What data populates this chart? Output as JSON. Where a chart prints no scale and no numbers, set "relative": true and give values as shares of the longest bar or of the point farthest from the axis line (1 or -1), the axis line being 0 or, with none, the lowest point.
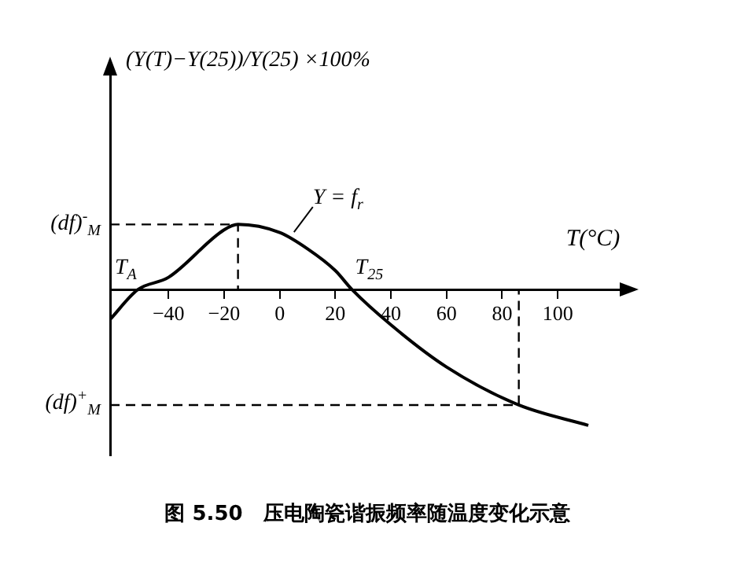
{
  "chart_data": {
    "type": "line",
    "relative": true,
    "title": "图 5.50　压电陶瓷谐振频率随温度变化示意",
    "xlabel": "T(°C)",
    "xlim": [
      -61,
      124
    ],
    "xticks": [
      -40,
      -20,
      0,
      20,
      40,
      60,
      80,
      100
    ],
    "marker": "none",
    "legend": false,
    "grid": false,
    "series": [
      {
        "color": "#000000",
        "x": [
          -61,
          -51,
          -40,
          -20,
          -15,
          0,
          10,
          20,
          26,
          40,
          60,
          86,
          111
        ],
        "values": [
          -0.22,
          0,
          0.09,
          0.44,
          0.48,
          0.42,
          0.3,
          0.14,
          0,
          -0.26,
          -0.57,
          -0.85,
          -1
        ]
      },
      {
        "color": "#000000",
        "line_style": "dashed",
        "x": [
          -61,
          -15,
          -15
        ],
        "values": [
          0.48,
          0.48,
          0
        ]
      },
      {
        "color": "#000000",
        "line_style": "dashed",
        "x": [
          -61,
          86,
          86
        ],
        "values": [
          -0.85,
          -0.85,
          0
        ]
      }
    ],
    "annotations": [
      "(Y(T)−Y(25))/Y(25) ×100%",
      {
        "text": "(df)$^{-}$$_{M}$",
        "x": -61,
        "y": 0.48
      },
      {
        "text": "(df)$^{+}$$_{M}$",
        "x": -61,
        "y": -0.85
      },
      {
        "text": "T$_{A}$",
        "x": -51,
        "y": 0
      },
      {
        "text": "T$_{25}$",
        "x": 26,
        "y": 0
      },
      {
        "text": "Y = f$_{r}$",
        "x": 4,
        "y": 0.4
      }
    ]
  }
}
